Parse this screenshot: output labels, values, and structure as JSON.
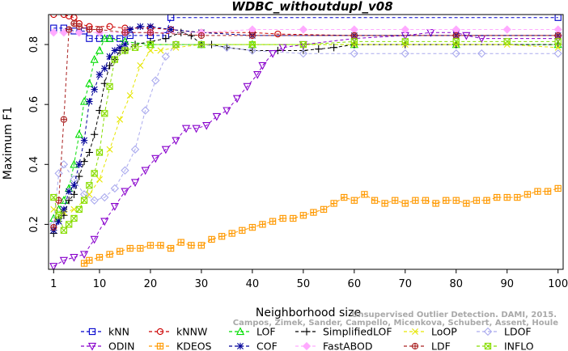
{
  "chart_data": {
    "type": "line",
    "title": "WDBC_withoutdupl_v08",
    "xlabel": "Neighborhood size",
    "ylabel": "Maximum F1",
    "xlim": [
      0,
      101
    ],
    "ylim": [
      0.05,
      0.9
    ],
    "x_ticks": [
      1,
      10,
      20,
      30,
      40,
      50,
      60,
      70,
      80,
      90,
      100
    ],
    "y_ticks": [
      0.2,
      0.4,
      0.6,
      0.8
    ],
    "grid": false,
    "legend_position": "bottom",
    "credit": {
      "line1": "Unsupervised Outlier Detection. DAMI, 2015.",
      "line2": "Campos, Zimek, Sander, Campello, Micenkova, Schubert, Assent, Houle"
    },
    "series": [
      {
        "name": "kNN",
        "color": "#0000cc",
        "marker": "square",
        "points": [
          [
            1,
            0.855
          ],
          [
            3,
            0.855
          ],
          [
            5,
            0.845
          ],
          [
            7,
            0.845
          ],
          [
            8,
            0.82
          ],
          [
            10,
            0.82
          ],
          [
            12,
            0.82
          ],
          [
            14,
            0.82
          ],
          [
            16,
            0.83
          ],
          [
            20,
            0.83
          ],
          [
            23,
            0.83
          ],
          [
            24,
            0.89
          ],
          [
            100,
            0.89
          ]
        ]
      },
      {
        "name": "kNNW",
        "color": "#cc0000",
        "marker": "circle",
        "points": [
          [
            1,
            0.9
          ],
          [
            3,
            0.9
          ],
          [
            4,
            0.895
          ],
          [
            5,
            0.89
          ],
          [
            6,
            0.87
          ],
          [
            8,
            0.86
          ],
          [
            12,
            0.86
          ],
          [
            15,
            0.855
          ],
          [
            20,
            0.855
          ],
          [
            24,
            0.85
          ],
          [
            30,
            0.84
          ],
          [
            40,
            0.84
          ],
          [
            45,
            0.835
          ],
          [
            60,
            0.83
          ],
          [
            80,
            0.83
          ],
          [
            100,
            0.83
          ]
        ]
      },
      {
        "name": "LOF",
        "color": "#00dd00",
        "marker": "triangle-up",
        "points": [
          [
            1,
            0.22
          ],
          [
            2,
            0.25
          ],
          [
            3,
            0.28
          ],
          [
            4,
            0.32
          ],
          [
            5,
            0.4
          ],
          [
            6,
            0.5
          ],
          [
            7,
            0.61
          ],
          [
            8,
            0.67
          ],
          [
            9,
            0.75
          ],
          [
            10,
            0.78
          ],
          [
            11,
            0.82
          ],
          [
            12,
            0.82
          ],
          [
            15,
            0.81
          ],
          [
            20,
            0.8
          ],
          [
            30,
            0.8
          ],
          [
            40,
            0.8
          ],
          [
            60,
            0.8
          ],
          [
            80,
            0.8
          ],
          [
            100,
            0.8
          ]
        ]
      },
      {
        "name": "SimplifiedLOF",
        "color": "#000000",
        "marker": "plus",
        "points": [
          [
            1,
            0.17
          ],
          [
            2,
            0.22
          ],
          [
            3,
            0.23
          ],
          [
            4,
            0.28
          ],
          [
            5,
            0.3
          ],
          [
            6,
            0.36
          ],
          [
            7,
            0.41
          ],
          [
            8,
            0.44
          ],
          [
            9,
            0.5
          ],
          [
            10,
            0.58
          ],
          [
            11,
            0.67
          ],
          [
            12,
            0.73
          ],
          [
            13,
            0.75
          ],
          [
            14,
            0.78
          ],
          [
            15,
            0.78
          ],
          [
            17,
            0.8
          ],
          [
            20,
            0.81
          ],
          [
            23,
            0.82
          ],
          [
            26,
            0.84
          ],
          [
            28,
            0.83
          ],
          [
            30,
            0.8
          ],
          [
            32,
            0.8
          ],
          [
            35,
            0.79
          ],
          [
            40,
            0.78
          ],
          [
            45,
            0.78
          ],
          [
            50,
            0.78
          ],
          [
            53,
            0.785
          ],
          [
            56,
            0.79
          ],
          [
            60,
            0.8
          ],
          [
            70,
            0.8
          ],
          [
            80,
            0.8
          ],
          [
            100,
            0.8
          ]
        ]
      },
      {
        "name": "LoOP",
        "color": "#e6e600",
        "marker": "x",
        "points": [
          [
            1,
            0.25
          ],
          [
            3,
            0.24
          ],
          [
            5,
            0.25
          ],
          [
            7,
            0.28
          ],
          [
            8,
            0.3
          ],
          [
            10,
            0.35
          ],
          [
            12,
            0.45
          ],
          [
            14,
            0.55
          ],
          [
            16,
            0.63
          ],
          [
            18,
            0.73
          ],
          [
            20,
            0.78
          ],
          [
            22,
            0.78
          ],
          [
            25,
            0.79
          ],
          [
            30,
            0.8
          ],
          [
            40,
            0.8
          ],
          [
            50,
            0.8
          ],
          [
            60,
            0.8
          ],
          [
            70,
            0.8
          ],
          [
            80,
            0.8
          ],
          [
            90,
            0.8
          ],
          [
            100,
            0.79
          ]
        ]
      },
      {
        "name": "LDOF",
        "color": "#aaaaee",
        "marker": "diamond",
        "points": [
          [
            1,
            0.2
          ],
          [
            2,
            0.37
          ],
          [
            3,
            0.4
          ],
          [
            5,
            0.35
          ],
          [
            7,
            0.3
          ],
          [
            9,
            0.28
          ],
          [
            11,
            0.29
          ],
          [
            13,
            0.32
          ],
          [
            15,
            0.38
          ],
          [
            17,
            0.45
          ],
          [
            19,
            0.58
          ],
          [
            21,
            0.68
          ],
          [
            23,
            0.76
          ],
          [
            25,
            0.8
          ],
          [
            30,
            0.8
          ],
          [
            35,
            0.79
          ],
          [
            40,
            0.78
          ],
          [
            50,
            0.77
          ],
          [
            60,
            0.77
          ],
          [
            70,
            0.77
          ],
          [
            80,
            0.77
          ],
          [
            85,
            0.77
          ],
          [
            100,
            0.77
          ]
        ]
      },
      {
        "name": "ODIN",
        "color": "#8800cc",
        "marker": "triangle-down",
        "points": [
          [
            1,
            0.06
          ],
          [
            3,
            0.08
          ],
          [
            5,
            0.09
          ],
          [
            7,
            0.1
          ],
          [
            9,
            0.15
          ],
          [
            11,
            0.21
          ],
          [
            13,
            0.26
          ],
          [
            15,
            0.31
          ],
          [
            17,
            0.34
          ],
          [
            19,
            0.38
          ],
          [
            21,
            0.42
          ],
          [
            23,
            0.45
          ],
          [
            25,
            0.48
          ],
          [
            27,
            0.52
          ],
          [
            29,
            0.52
          ],
          [
            31,
            0.53
          ],
          [
            33,
            0.56
          ],
          [
            35,
            0.58
          ],
          [
            37,
            0.62
          ],
          [
            39,
            0.66
          ],
          [
            41,
            0.7
          ],
          [
            42,
            0.73
          ],
          [
            44,
            0.77
          ],
          [
            46,
            0.79
          ],
          [
            50,
            0.8
          ],
          [
            60,
            0.82
          ],
          [
            70,
            0.83
          ],
          [
            75,
            0.84
          ],
          [
            80,
            0.84
          ],
          [
            82,
            0.83
          ],
          [
            85,
            0.82
          ],
          [
            100,
            0.82
          ]
        ]
      },
      {
        "name": "KDEOS",
        "color": "#ff9900",
        "marker": "square-cross",
        "points": [
          [
            7,
            0.07
          ],
          [
            8,
            0.08
          ],
          [
            10,
            0.09
          ],
          [
            12,
            0.1
          ],
          [
            14,
            0.11
          ],
          [
            16,
            0.12
          ],
          [
            18,
            0.12
          ],
          [
            20,
            0.13
          ],
          [
            22,
            0.13
          ],
          [
            24,
            0.12
          ],
          [
            26,
            0.14
          ],
          [
            28,
            0.13
          ],
          [
            30,
            0.13
          ],
          [
            32,
            0.15
          ],
          [
            34,
            0.16
          ],
          [
            36,
            0.17
          ],
          [
            38,
            0.18
          ],
          [
            40,
            0.19
          ],
          [
            42,
            0.2
          ],
          [
            44,
            0.21
          ],
          [
            46,
            0.22
          ],
          [
            48,
            0.22
          ],
          [
            50,
            0.23
          ],
          [
            52,
            0.24
          ],
          [
            54,
            0.25
          ],
          [
            56,
            0.27
          ],
          [
            58,
            0.29
          ],
          [
            60,
            0.28
          ],
          [
            62,
            0.3
          ],
          [
            64,
            0.28
          ],
          [
            66,
            0.27
          ],
          [
            68,
            0.28
          ],
          [
            70,
            0.27
          ],
          [
            72,
            0.28
          ],
          [
            74,
            0.28
          ],
          [
            76,
            0.27
          ],
          [
            78,
            0.28
          ],
          [
            80,
            0.28
          ],
          [
            82,
            0.27
          ],
          [
            84,
            0.28
          ],
          [
            86,
            0.28
          ],
          [
            88,
            0.29
          ],
          [
            90,
            0.29
          ],
          [
            92,
            0.29
          ],
          [
            94,
            0.3
          ],
          [
            96,
            0.31
          ],
          [
            98,
            0.31
          ],
          [
            100,
            0.32
          ]
        ]
      },
      {
        "name": "COF",
        "color": "#000099",
        "marker": "asterisk",
        "points": [
          [
            1,
            0.18
          ],
          [
            2,
            0.21
          ],
          [
            3,
            0.25
          ],
          [
            4,
            0.31
          ],
          [
            5,
            0.33
          ],
          [
            6,
            0.4
          ],
          [
            7,
            0.48
          ],
          [
            8,
            0.61
          ],
          [
            9,
            0.65
          ],
          [
            10,
            0.7
          ],
          [
            11,
            0.72
          ],
          [
            12,
            0.76
          ],
          [
            13,
            0.78
          ],
          [
            14,
            0.79
          ],
          [
            15,
            0.8
          ],
          [
            16,
            0.85
          ],
          [
            18,
            0.86
          ],
          [
            20,
            0.86
          ],
          [
            24,
            0.85
          ],
          [
            30,
            0.84
          ],
          [
            40,
            0.83
          ],
          [
            60,
            0.83
          ],
          [
            80,
            0.83
          ],
          [
            100,
            0.83
          ]
        ]
      },
      {
        "name": "FastABOD",
        "color": "#ffaaff",
        "marker": "diamond-filled",
        "points": [
          [
            1,
            0.84
          ],
          [
            3,
            0.84
          ],
          [
            6,
            0.84
          ],
          [
            10,
            0.84
          ],
          [
            15,
            0.84
          ],
          [
            20,
            0.84
          ],
          [
            30,
            0.84
          ],
          [
            40,
            0.85
          ],
          [
            50,
            0.85
          ],
          [
            60,
            0.85
          ],
          [
            70,
            0.85
          ],
          [
            80,
            0.85
          ],
          [
            90,
            0.85
          ],
          [
            100,
            0.85
          ]
        ]
      },
      {
        "name": "LDF",
        "color": "#aa2222",
        "marker": "circle-plus",
        "points": [
          [
            1,
            0.19
          ],
          [
            2,
            0.28
          ],
          [
            3,
            0.55
          ],
          [
            4,
            0.85
          ],
          [
            5,
            0.87
          ],
          [
            6,
            0.86
          ],
          [
            8,
            0.85
          ],
          [
            10,
            0.85
          ],
          [
            15,
            0.84
          ],
          [
            20,
            0.84
          ],
          [
            30,
            0.83
          ],
          [
            40,
            0.83
          ],
          [
            60,
            0.83
          ],
          [
            80,
            0.83
          ],
          [
            100,
            0.83
          ]
        ]
      },
      {
        "name": "INFLO",
        "color": "#88dd00",
        "marker": "square-x",
        "points": [
          [
            1,
            0.29
          ],
          [
            2,
            0.23
          ],
          [
            3,
            0.18
          ],
          [
            4,
            0.2
          ],
          [
            5,
            0.22
          ],
          [
            6,
            0.25
          ],
          [
            7,
            0.28
          ],
          [
            8,
            0.33
          ],
          [
            9,
            0.37
          ],
          [
            10,
            0.44
          ],
          [
            11,
            0.57
          ],
          [
            12,
            0.66
          ],
          [
            13,
            0.75
          ],
          [
            15,
            0.78
          ],
          [
            17,
            0.79
          ],
          [
            20,
            0.8
          ],
          [
            25,
            0.8
          ],
          [
            30,
            0.8
          ],
          [
            40,
            0.8
          ],
          [
            50,
            0.8
          ],
          [
            60,
            0.81
          ],
          [
            70,
            0.81
          ],
          [
            80,
            0.81
          ],
          [
            90,
            0.81
          ],
          [
            100,
            0.81
          ]
        ]
      }
    ]
  }
}
